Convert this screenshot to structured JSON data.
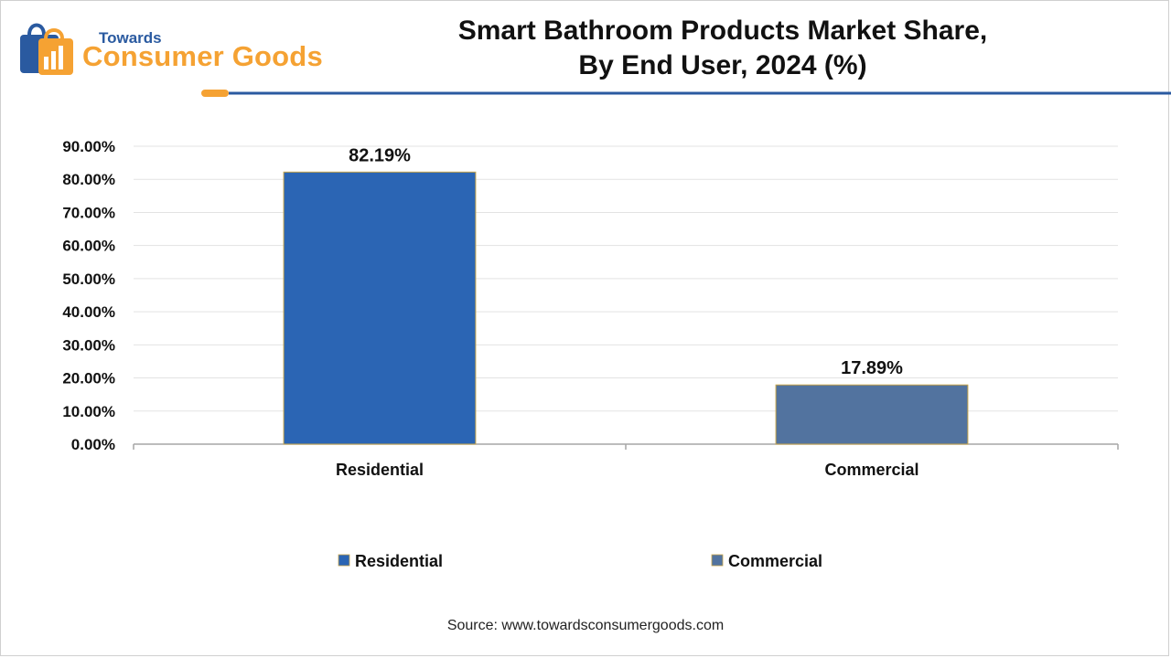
{
  "logo": {
    "line1": "Towards",
    "line2": "Consumer Goods"
  },
  "title": {
    "line1": "Smart Bathroom Products Market Share,",
    "line2": "By End User, 2024 (%)"
  },
  "source": "Source: www.towardsconsumergoods.com",
  "chart_data": {
    "type": "bar",
    "title": "Smart Bathroom Products Market Share, By End User, 2024 (%)",
    "categories": [
      "Residential",
      "Commercial"
    ],
    "values": [
      82.19,
      17.89
    ],
    "data_labels": [
      "82.19%",
      "17.89%"
    ],
    "colors": [
      "#2b65b4",
      "#52739f"
    ],
    "ylim": [
      0,
      90
    ],
    "y_ticks": [
      0,
      10,
      20,
      30,
      40,
      50,
      60,
      70,
      80,
      90
    ],
    "y_tick_labels": [
      "0.00%",
      "10.00%",
      "20.00%",
      "30.00%",
      "40.00%",
      "50.00%",
      "60.00%",
      "70.00%",
      "80.00%",
      "90.00%"
    ],
    "xlabel": "",
    "ylabel": "",
    "grid": true,
    "legend": {
      "position": "bottom",
      "entries": [
        "Residential",
        "Commercial"
      ]
    }
  }
}
